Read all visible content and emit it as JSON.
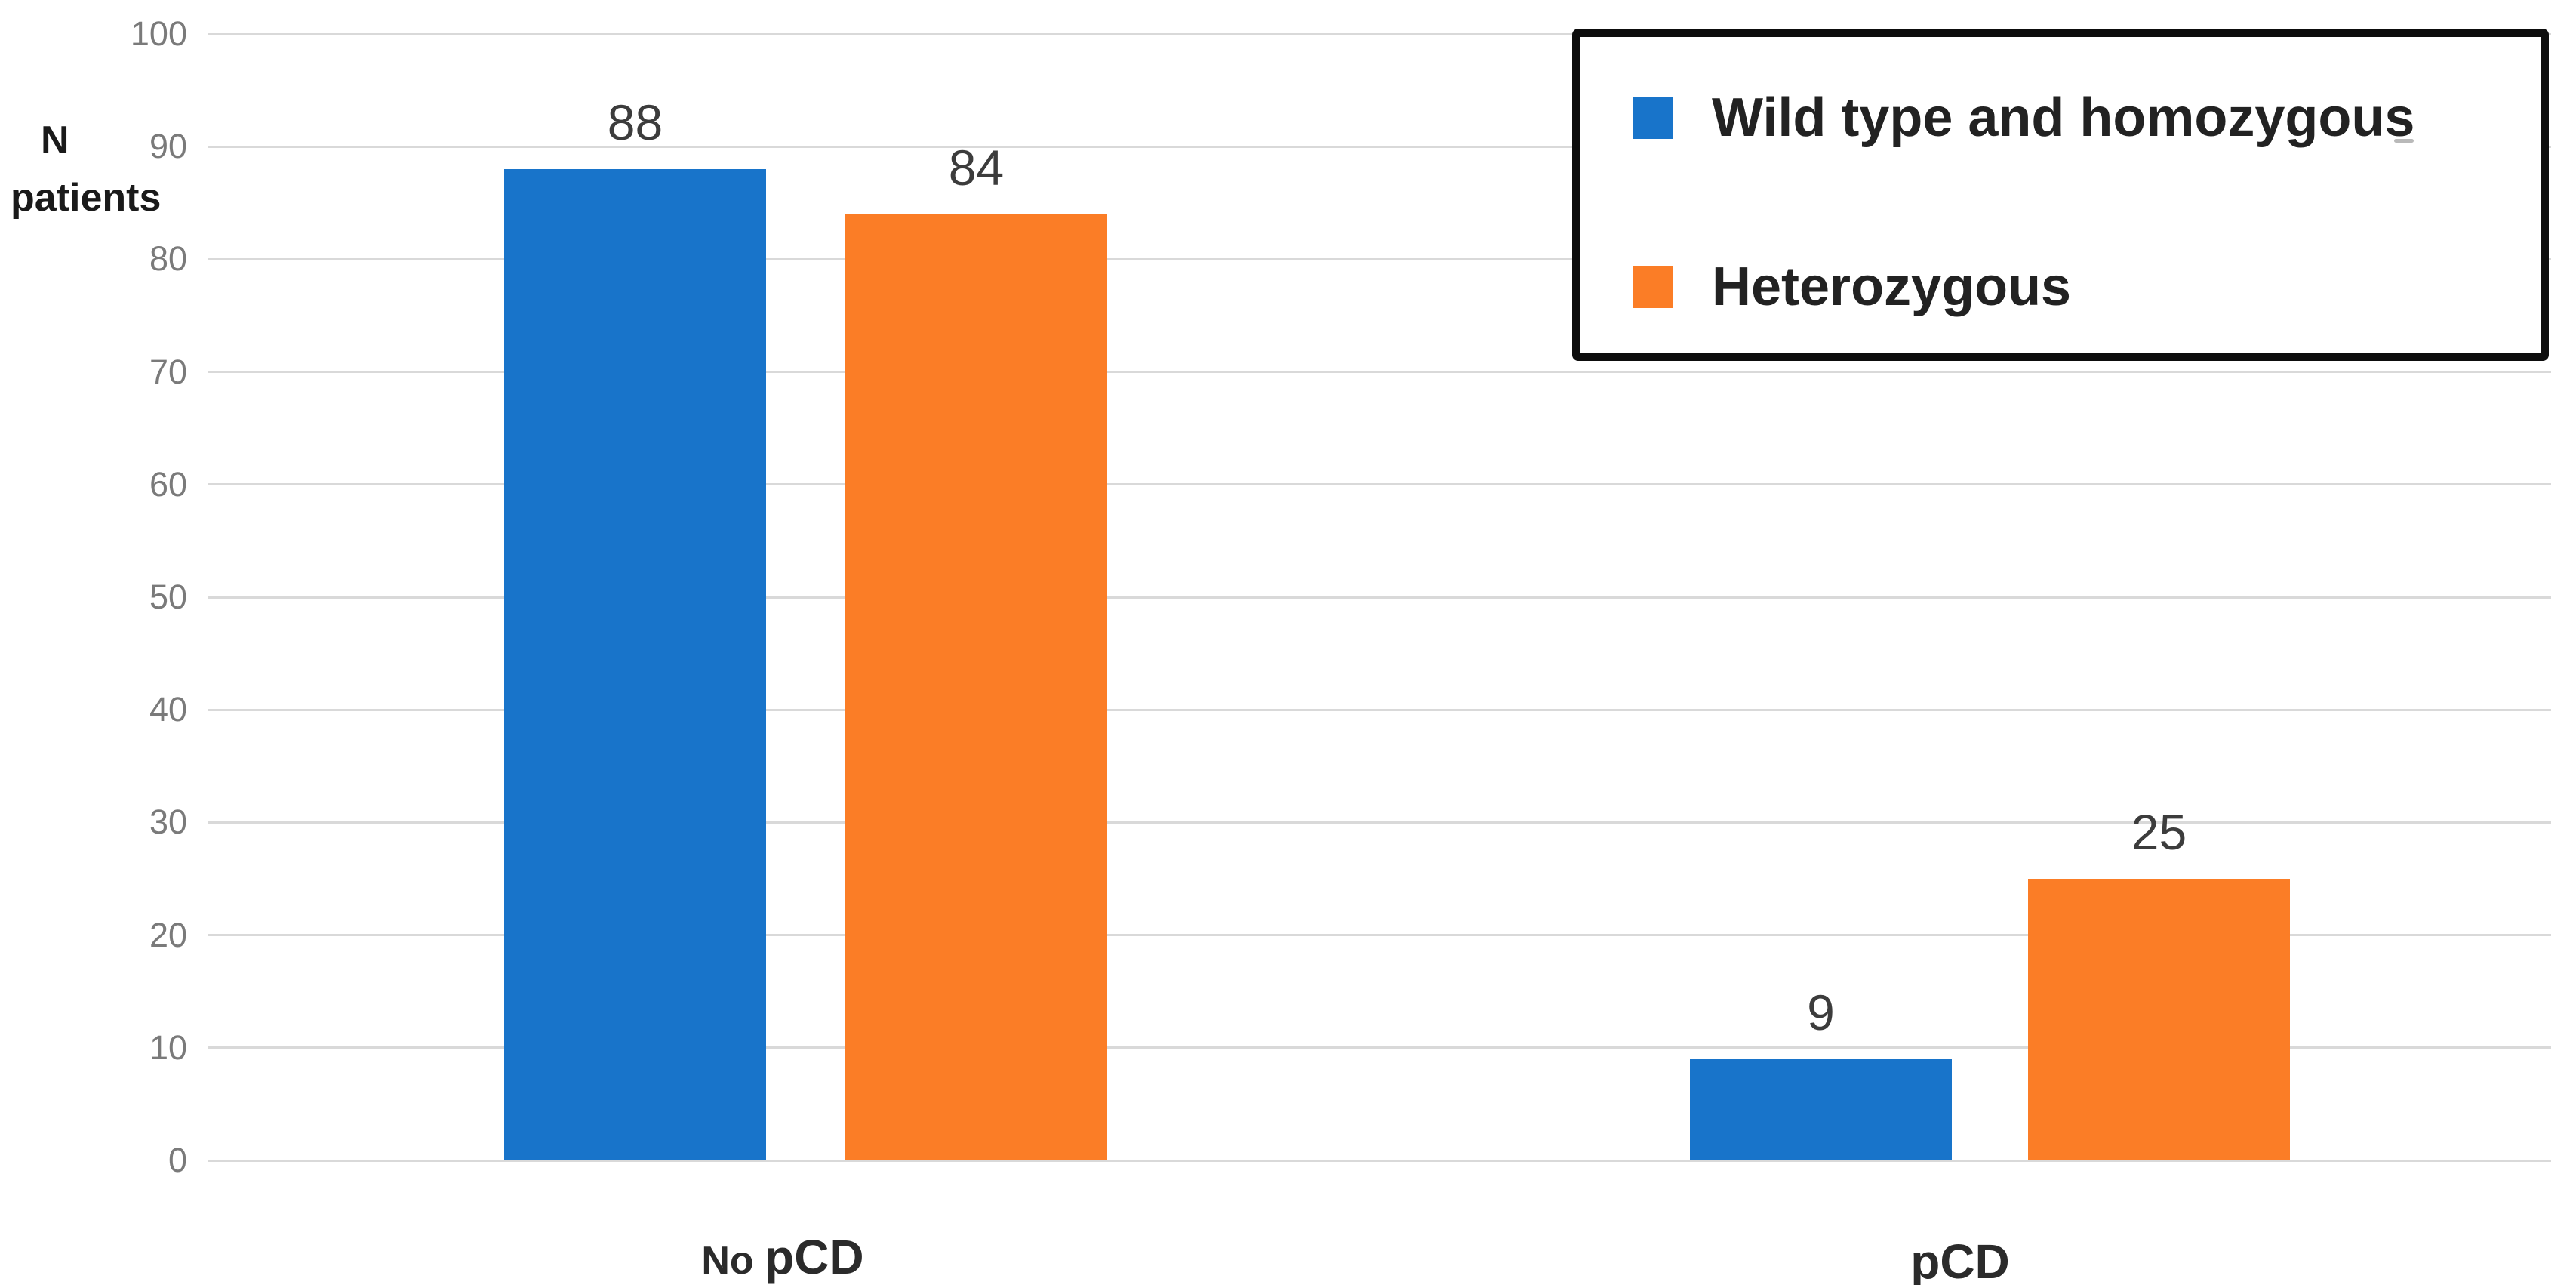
{
  "chart_data": {
    "type": "bar",
    "title": "",
    "categories": [
      "No pCD",
      "pCD"
    ],
    "series": [
      {
        "name": "Wild type and homozygous",
        "color": "#1874ca",
        "values": [
          88,
          9
        ]
      },
      {
        "name": "Heterozygous",
        "color": "#fb7d26",
        "values": [
          84,
          25
        ]
      }
    ],
    "xlabel": "",
    "ylabel": "N patients",
    "ylim": [
      0,
      100
    ],
    "yticks": [
      0,
      10,
      20,
      30,
      40,
      50,
      60,
      70,
      80,
      90,
      100
    ],
    "grid": true,
    "legend_position": "top-right",
    "bar_value_labels": [
      "88",
      "84",
      "9",
      "25"
    ]
  },
  "axis": {
    "ylabel_line1": "N",
    "ylabel_line2": "patients"
  },
  "xlabels": {
    "group1_prefix": "No ",
    "group1_main": "pCD",
    "group2_main": "pCD"
  },
  "legend": {
    "items": [
      {
        "label": "Wild type and homozygous",
        "color": "#1874ca"
      },
      {
        "label": "Heterozygous",
        "color": "#fb7d26"
      }
    ]
  },
  "colors": {
    "series_blue": "#1874ca",
    "series_orange": "#fb7d26",
    "gridline": "#d9d9d9",
    "tick_text": "#7a7a7a",
    "value_text": "#3c3c3c",
    "legend_border": "#0d0d0d",
    "background": "#ffffff"
  }
}
